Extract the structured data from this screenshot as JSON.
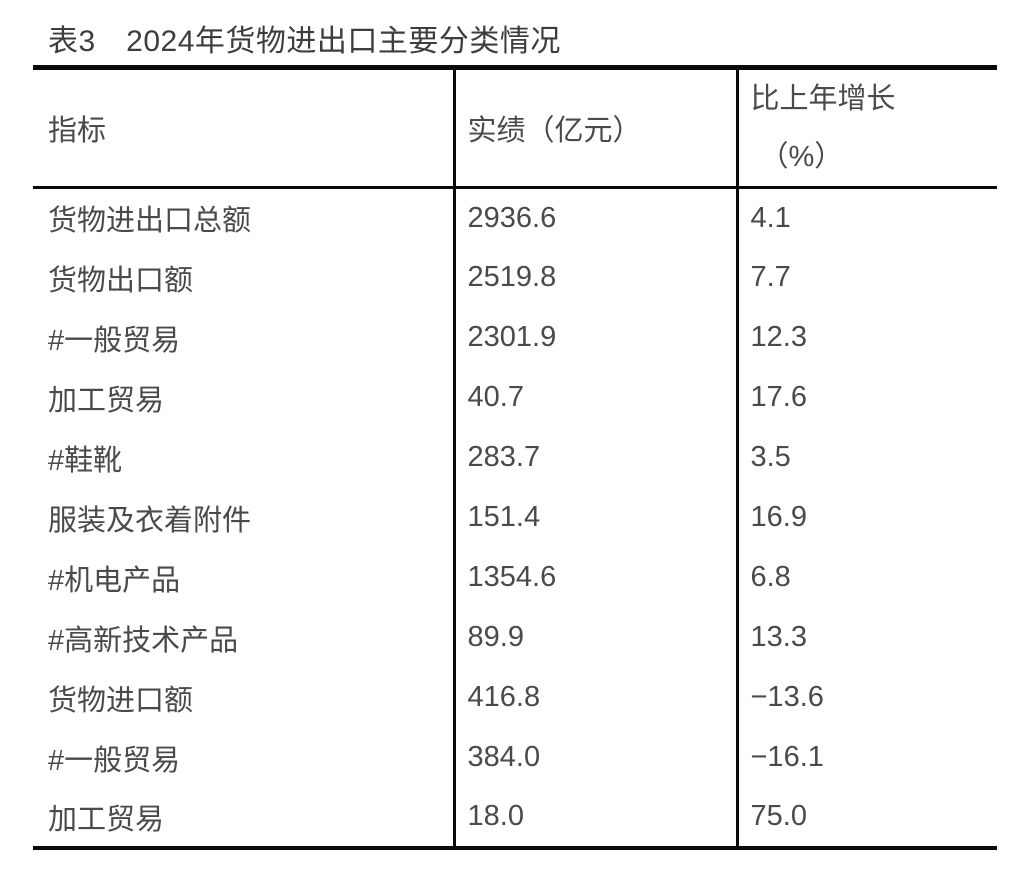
{
  "page": {
    "title": "表3　2024年货物进出口主要分类情况"
  },
  "table": {
    "header": {
      "indicator": "指标",
      "value": "实绩（亿元）",
      "growth_line1": "比上年增长",
      "growth_line2": "（%）"
    },
    "rows": [
      {
        "indicator": "货物进出口总额",
        "value": "2936.6",
        "growth": "4.1"
      },
      {
        "indicator": "货物出口额",
        "value": "2519.8",
        "growth": "7.7"
      },
      {
        "indicator": "#一般贸易",
        "value": "2301.9",
        "growth": "12.3"
      },
      {
        "indicator": "加工贸易",
        "value": "40.7",
        "growth": "17.6"
      },
      {
        "indicator": "#鞋靴",
        "value": "283.7",
        "growth": "3.5"
      },
      {
        "indicator": "服装及衣着附件",
        "value": "151.4",
        "growth": "16.9"
      },
      {
        "indicator": "#机电产品",
        "value": "1354.6",
        "growth": "6.8"
      },
      {
        "indicator": "#高新技术产品",
        "value": "89.9",
        "growth": "13.3"
      },
      {
        "indicator": "货物进口额",
        "value": "416.8",
        "growth": "−13.6"
      },
      {
        "indicator": "#一般贸易",
        "value": "384.0",
        "growth": "−16.1"
      },
      {
        "indicator": "加工贸易",
        "value": "18.0",
        "growth": "75.0"
      }
    ],
    "colors": {
      "background": "#ffffff",
      "title_text": "#3d3d3f",
      "body_text": "#4a4a4d",
      "border": "#0a0a0a"
    }
  }
}
